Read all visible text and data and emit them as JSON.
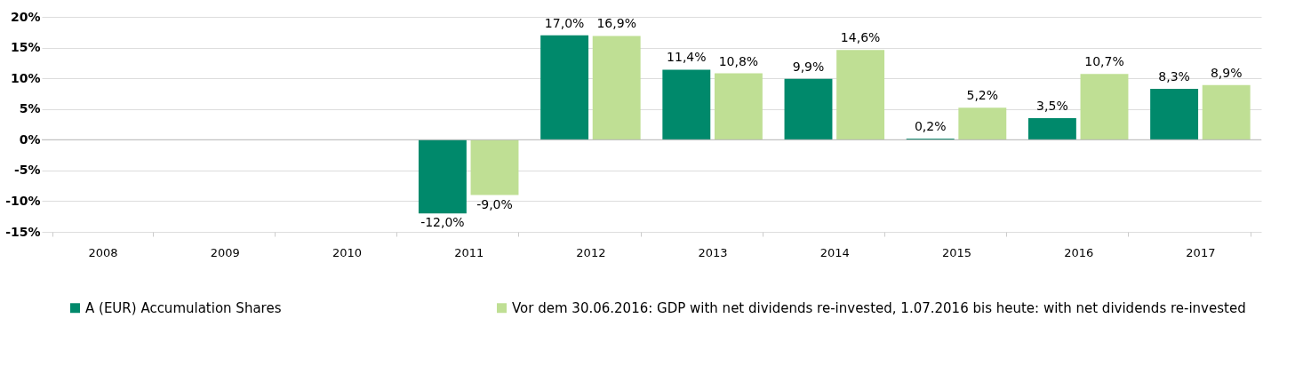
{
  "chart_data": {
    "type": "bar",
    "categories": [
      "2008",
      "2009",
      "2010",
      "2011",
      "2012",
      "2013",
      "2014",
      "2015",
      "2016",
      "2017"
    ],
    "series": [
      {
        "name": "A (EUR) Accumulation Shares",
        "color": "#00896b",
        "values": [
          null,
          null,
          null,
          -12.0,
          17.0,
          11.4,
          9.9,
          0.2,
          3.5,
          8.3
        ],
        "value_labels": [
          null,
          null,
          null,
          "-12,0%",
          "17,0%",
          "11,4%",
          "9,9%",
          "0,2%",
          "3,5%",
          "8,3%"
        ]
      },
      {
        "name": "Vor dem 30.06.2016: GDP with net dividends re-invested, 1.07.2016 bis heute: with net dividends re-invested",
        "color": "#bfdf94",
        "values": [
          null,
          null,
          null,
          -9.0,
          16.9,
          10.8,
          14.6,
          5.2,
          10.7,
          8.9
        ],
        "value_labels": [
          null,
          null,
          null,
          "-9,0%",
          "16,9%",
          "10,8%",
          "14,6%",
          "5,2%",
          "10,7%",
          "8,9%"
        ]
      }
    ],
    "ylim": [
      -15,
      20
    ],
    "yticks": [
      {
        "value": -15,
        "label": "-15%"
      },
      {
        "value": -10,
        "label": "-10%"
      },
      {
        "value": -5,
        "label": "-5%"
      },
      {
        "value": 0,
        "label": "0%"
      },
      {
        "value": 5,
        "label": "5%"
      },
      {
        "value": 10,
        "label": "10%"
      },
      {
        "value": 15,
        "label": "15%"
      },
      {
        "value": 20,
        "label": "20%"
      }
    ],
    "grid": "y",
    "legend": "bottom"
  }
}
